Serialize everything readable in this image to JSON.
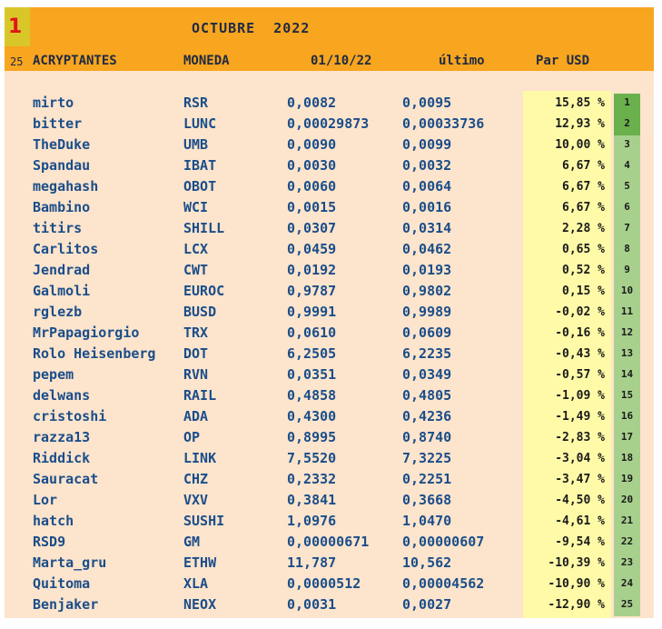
{
  "header": {
    "rank_badge": "1",
    "title": "OCTUBRE  2022",
    "count": "25",
    "columns": [
      "ACRYPTANTES",
      "MONEDA",
      "01/10/22",
      "último",
      "Par USD"
    ]
  },
  "colors": {
    "header_bg": "#f8a51f",
    "sheet_bg": "#fde4cc",
    "pct_bg": "#fefaa8",
    "rank_bg": "#a8d08d",
    "rank_top_bg": "#6ab04c",
    "text": "#1a4e8a",
    "badge": "#e0161a"
  },
  "rows": [
    {
      "name": "mirto",
      "coin": "RSR",
      "open": "0,0082",
      "last": "0,0095",
      "pct": "15,85 %",
      "rank": "1"
    },
    {
      "name": "bitter",
      "coin": "LUNC",
      "open": "0,00029873",
      "last": "0,00033736",
      "pct": "12,93 %",
      "rank": "2"
    },
    {
      "name": "TheDuke",
      "coin": "UMB",
      "open": "0,0090",
      "last": "0,0099",
      "pct": "10,00 %",
      "rank": "3"
    },
    {
      "name": "Spandau",
      "coin": "IBAT",
      "open": "0,0030",
      "last": "0,0032",
      "pct": "6,67 %",
      "rank": "4"
    },
    {
      "name": "megahash",
      "coin": "OBOT",
      "open": "0,0060",
      "last": "0,0064",
      "pct": "6,67 %",
      "rank": "5"
    },
    {
      "name": "Bambino",
      "coin": "WCI",
      "open": "0,0015",
      "last": "0,0016",
      "pct": "6,67 %",
      "rank": "6"
    },
    {
      "name": "titirs",
      "coin": "SHILL",
      "open": "0,0307",
      "last": "0,0314",
      "pct": "2,28 %",
      "rank": "7"
    },
    {
      "name": "Carlitos",
      "coin": "LCX",
      "open": "0,0459",
      "last": "0,0462",
      "pct": "0,65 %",
      "rank": "8"
    },
    {
      "name": "Jendrad",
      "coin": "CWT",
      "open": "0,0192",
      "last": "0,0193",
      "pct": "0,52 %",
      "rank": "9"
    },
    {
      "name": "Galmoli",
      "coin": "EUROC",
      "open": "0,9787",
      "last": "0,9802",
      "pct": "0,15 %",
      "rank": "10"
    },
    {
      "name": "rglezb",
      "coin": "BUSD",
      "open": "0,9991",
      "last": "0,9989",
      "pct": "-0,02 %",
      "rank": "11"
    },
    {
      "name": "MrPapagiorgio",
      "coin": "TRX",
      "open": "0,0610",
      "last": "0,0609",
      "pct": "-0,16 %",
      "rank": "12"
    },
    {
      "name": "Rolo Heisenberg",
      "coin": "DOT",
      "open": "6,2505",
      "last": "6,2235",
      "pct": "-0,43 %",
      "rank": "13"
    },
    {
      "name": "pepem",
      "coin": "RVN",
      "open": "0,0351",
      "last": "0,0349",
      "pct": "-0,57 %",
      "rank": "14"
    },
    {
      "name": "delwans",
      "coin": "RAIL",
      "open": "0,4858",
      "last": "0,4805",
      "pct": "-1,09 %",
      "rank": "15"
    },
    {
      "name": "cristoshi",
      "coin": "ADA",
      "open": "0,4300",
      "last": "0,4236",
      "pct": "-1,49 %",
      "rank": "16"
    },
    {
      "name": "razza13",
      "coin": "OP",
      "open": "0,8995",
      "last": "0,8740",
      "pct": "-2,83 %",
      "rank": "17"
    },
    {
      "name": "Riddick",
      "coin": "LINK",
      "open": "7,5520",
      "last": "7,3225",
      "pct": "-3,04 %",
      "rank": "18"
    },
    {
      "name": "Sauracat",
      "coin": "CHZ",
      "open": "0,2332",
      "last": "0,2251",
      "pct": "-3,47 %",
      "rank": "19"
    },
    {
      "name": "Lor",
      "coin": "VXV",
      "open": "0,3841",
      "last": "0,3668",
      "pct": "-4,50 %",
      "rank": "20"
    },
    {
      "name": "hatch",
      "coin": "SUSHI",
      "open": "1,0976",
      "last": "1,0470",
      "pct": "-4,61 %",
      "rank": "21"
    },
    {
      "name": "RSD9",
      "coin": "GM",
      "open": "0,00000671",
      "last": "0,00000607",
      "pct": "-9,54 %",
      "rank": "22"
    },
    {
      "name": "Marta_gru",
      "coin": "ETHW",
      "open": "11,787",
      "last": "10,562",
      "pct": "-10,39 %",
      "rank": "23"
    },
    {
      "name": "Quitoma",
      "coin": "XLA",
      "open": "0,0000512",
      "last": "0,00004562",
      "pct": "-10,90 %",
      "rank": "24"
    },
    {
      "name": "Benjaker",
      "coin": "NEOX",
      "open": "0,0031",
      "last": "0,0027",
      "pct": "-12,90 %",
      "rank": "25"
    }
  ]
}
